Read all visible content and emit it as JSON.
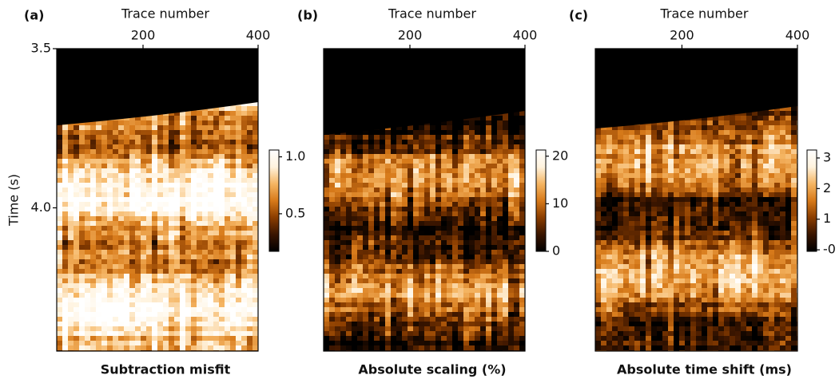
{
  "chart_data": [
    {
      "type": "image",
      "panel_label": "(a)",
      "title": "Subtraction misfit",
      "xlabel": "Trace number",
      "xlim": [
        50,
        400
      ],
      "xticks": [
        200,
        400
      ],
      "ylabel": "Time (s)",
      "ylim": [
        3.5,
        4.45
      ],
      "yticks": [
        3.5,
        {
          "value": 4,
          "label": "4.0"
        }
      ],
      "clim": [
        0.17,
        1.06
      ],
      "cticks": [
        {
          "value": 1,
          "label": "1.0"
        },
        0.5
      ],
      "colors": [
        "#000000",
        "#3a1500",
        "#8a3d00",
        "#d77a1a",
        "#f5b563",
        "#fff3de",
        "#ffffff"
      ]
    },
    {
      "type": "image",
      "panel_label": "(b)",
      "title": "Absolute scaling (%)",
      "xlabel": "Trace number",
      "xlim": [
        50,
        400
      ],
      "xticks": [
        200,
        400
      ],
      "clim": [
        0,
        21.3
      ],
      "cticks": [
        20,
        10,
        0
      ],
      "colors": [
        "#000000",
        "#3a1500",
        "#8a3d00",
        "#d77a1a",
        "#f5b563",
        "#fff3de",
        "#ffffff"
      ]
    },
    {
      "type": "image",
      "panel_label": "(c)",
      "title": "Absolute time shift (ms)",
      "xlabel": "Trace number",
      "xlim": [
        50,
        400
      ],
      "xticks": [
        200,
        400
      ],
      "clim": [
        -0.05,
        3.26
      ],
      "cticks": [
        3,
        2,
        1,
        {
          "value": 0,
          "label": "-0"
        }
      ],
      "colors": [
        "#000000",
        "#3a1500",
        "#8a3d00",
        "#d77a1a",
        "#f5b563",
        "#fff3de",
        "#ffffff"
      ]
    }
  ]
}
